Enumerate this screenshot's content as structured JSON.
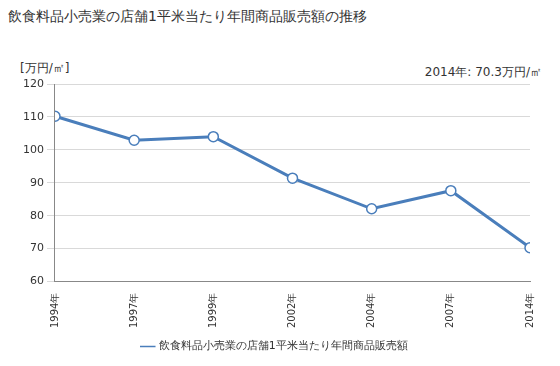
{
  "chart_data": {
    "type": "line",
    "title": "飲食料品小売業の店舗1平米当たり年間商品販売額の推移",
    "y_label": "[万円/㎡]",
    "annotation": "2014年: 70.3万円/㎡",
    "categories": [
      "1994年",
      "1997年",
      "1999年",
      "2002年",
      "2004年",
      "2007年",
      "2014年"
    ],
    "series": [
      {
        "name": "飲食料品小売業の店舗1平米当たり年間商品販売額",
        "color": "#4a7ebb",
        "marker": "circle",
        "values": [
          110.2,
          102.9,
          104.0,
          91.4,
          82.1,
          87.6,
          70.3
        ]
      }
    ],
    "ylim": [
      60,
      120
    ],
    "yticks": [
      60,
      70,
      80,
      90,
      100,
      110,
      120
    ],
    "grid": true,
    "legend": "bottom"
  }
}
